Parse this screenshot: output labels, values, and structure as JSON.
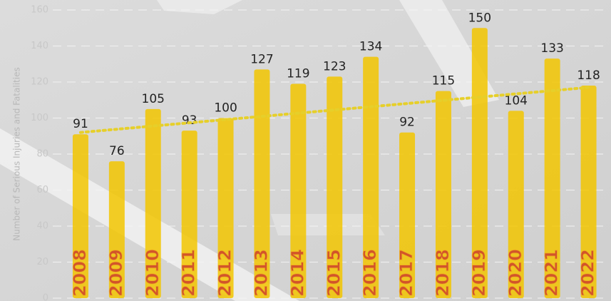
{
  "chart_data": {
    "type": "bar",
    "y_label": "Number of Serious Injuries and Fatalities",
    "categories": [
      "2008",
      "2009",
      "2010",
      "2011",
      "2012",
      "2013",
      "2014",
      "2015",
      "2016",
      "2017",
      "2018",
      "2019",
      "2020",
      "2021",
      "2022"
    ],
    "values": [
      91,
      76,
      105,
      93,
      100,
      127,
      119,
      123,
      134,
      92,
      115,
      150,
      104,
      133,
      118
    ],
    "color": "#f2c500",
    "trendline": {
      "values": [
        92,
        117
      ],
      "color": "#e6cf2a"
    },
    "ylim": [
      0,
      160
    ],
    "yticks": [
      0,
      20,
      40,
      60,
      80,
      100,
      120,
      140,
      160
    ],
    "grid": true
  }
}
